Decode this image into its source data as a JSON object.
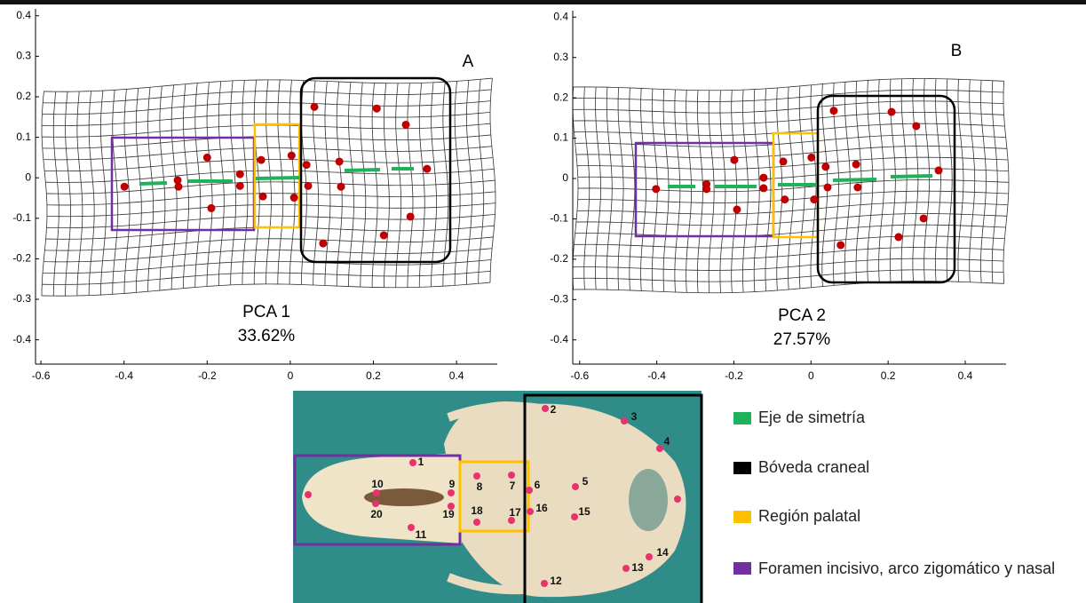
{
  "chart_data": [
    {
      "type": "scatter",
      "label": "A",
      "title": "PCA 1",
      "subtitle": "33.62%",
      "color": "#c00000",
      "x": [
        -0.399,
        -0.271,
        -0.269,
        -0.2,
        -0.19,
        -0.121,
        -0.121,
        -0.07,
        -0.066,
        0.003,
        0.009,
        0.039,
        0.043,
        0.058,
        0.118,
        0.122,
        0.208,
        0.278,
        0.329,
        0.225,
        0.289,
        0.079
      ],
      "values": [
        -0.022,
        -0.006,
        -0.022,
        0.05,
        -0.075,
        0.009,
        -0.02,
        0.044,
        -0.046,
        0.055,
        -0.049,
        0.032,
        -0.02,
        0.175,
        0.04,
        -0.022,
        0.171,
        0.131,
        0.022,
        -0.142,
        -0.096,
        -0.162
      ],
      "xlim": [
        -0.613,
        0.498
      ],
      "ylim": [
        -0.46,
        0.417
      ],
      "xticks": [
        -0.6,
        -0.4,
        -0.2,
        0,
        0.2,
        0.4
      ],
      "yticks": [
        -0.4,
        -0.3,
        -0.2,
        -0.1,
        0,
        0.1,
        0.2,
        0.3,
        0.4
      ]
    },
    {
      "type": "scatter",
      "label": "B",
      "title": "PCA 2",
      "subtitle": "27.57%",
      "color": "#c00000",
      "x": [
        -0.402,
        -0.271,
        -0.271,
        -0.199,
        -0.192,
        -0.123,
        -0.123,
        -0.072,
        -0.068,
        0.001,
        0.008,
        0.038,
        0.043,
        0.059,
        0.117,
        0.121,
        0.209,
        0.273,
        0.331,
        0.227,
        0.292,
        0.077
      ],
      "values": [
        -0.026,
        -0.014,
        -0.026,
        0.046,
        -0.077,
        0.002,
        -0.024,
        0.042,
        -0.052,
        0.052,
        -0.052,
        0.029,
        -0.022,
        0.168,
        0.035,
        -0.022,
        0.165,
        0.13,
        0.02,
        -0.145,
        -0.099,
        -0.165
      ],
      "xlim": [
        -0.618,
        0.506
      ],
      "ylim": [
        -0.46,
        0.416
      ],
      "xticks": [
        -0.6,
        -0.4,
        -0.2,
        0,
        0.2,
        0.4
      ],
      "yticks": [
        -0.4,
        -0.3,
        -0.2,
        -0.1,
        0,
        0.1,
        0.2,
        0.3,
        0.4
      ]
    }
  ],
  "photo": {
    "landmarks": [
      "1",
      "2",
      "3",
      "4",
      "5",
      "6",
      "7",
      "8",
      "9",
      "10",
      "11",
      "12",
      "13",
      "14",
      "15",
      "16",
      "17",
      "18",
      "19",
      "20"
    ]
  },
  "legend": {
    "items": [
      {
        "label": "Eje de simetría",
        "color": "#1fb25a"
      },
      {
        "label": "Bóveda craneal",
        "color": "#000000"
      },
      {
        "label": "Región palatal",
        "color": "#ffc000"
      },
      {
        "label": "Foramen incisivo, arco zigomático y nasal",
        "color": "#7030a0"
      }
    ]
  }
}
